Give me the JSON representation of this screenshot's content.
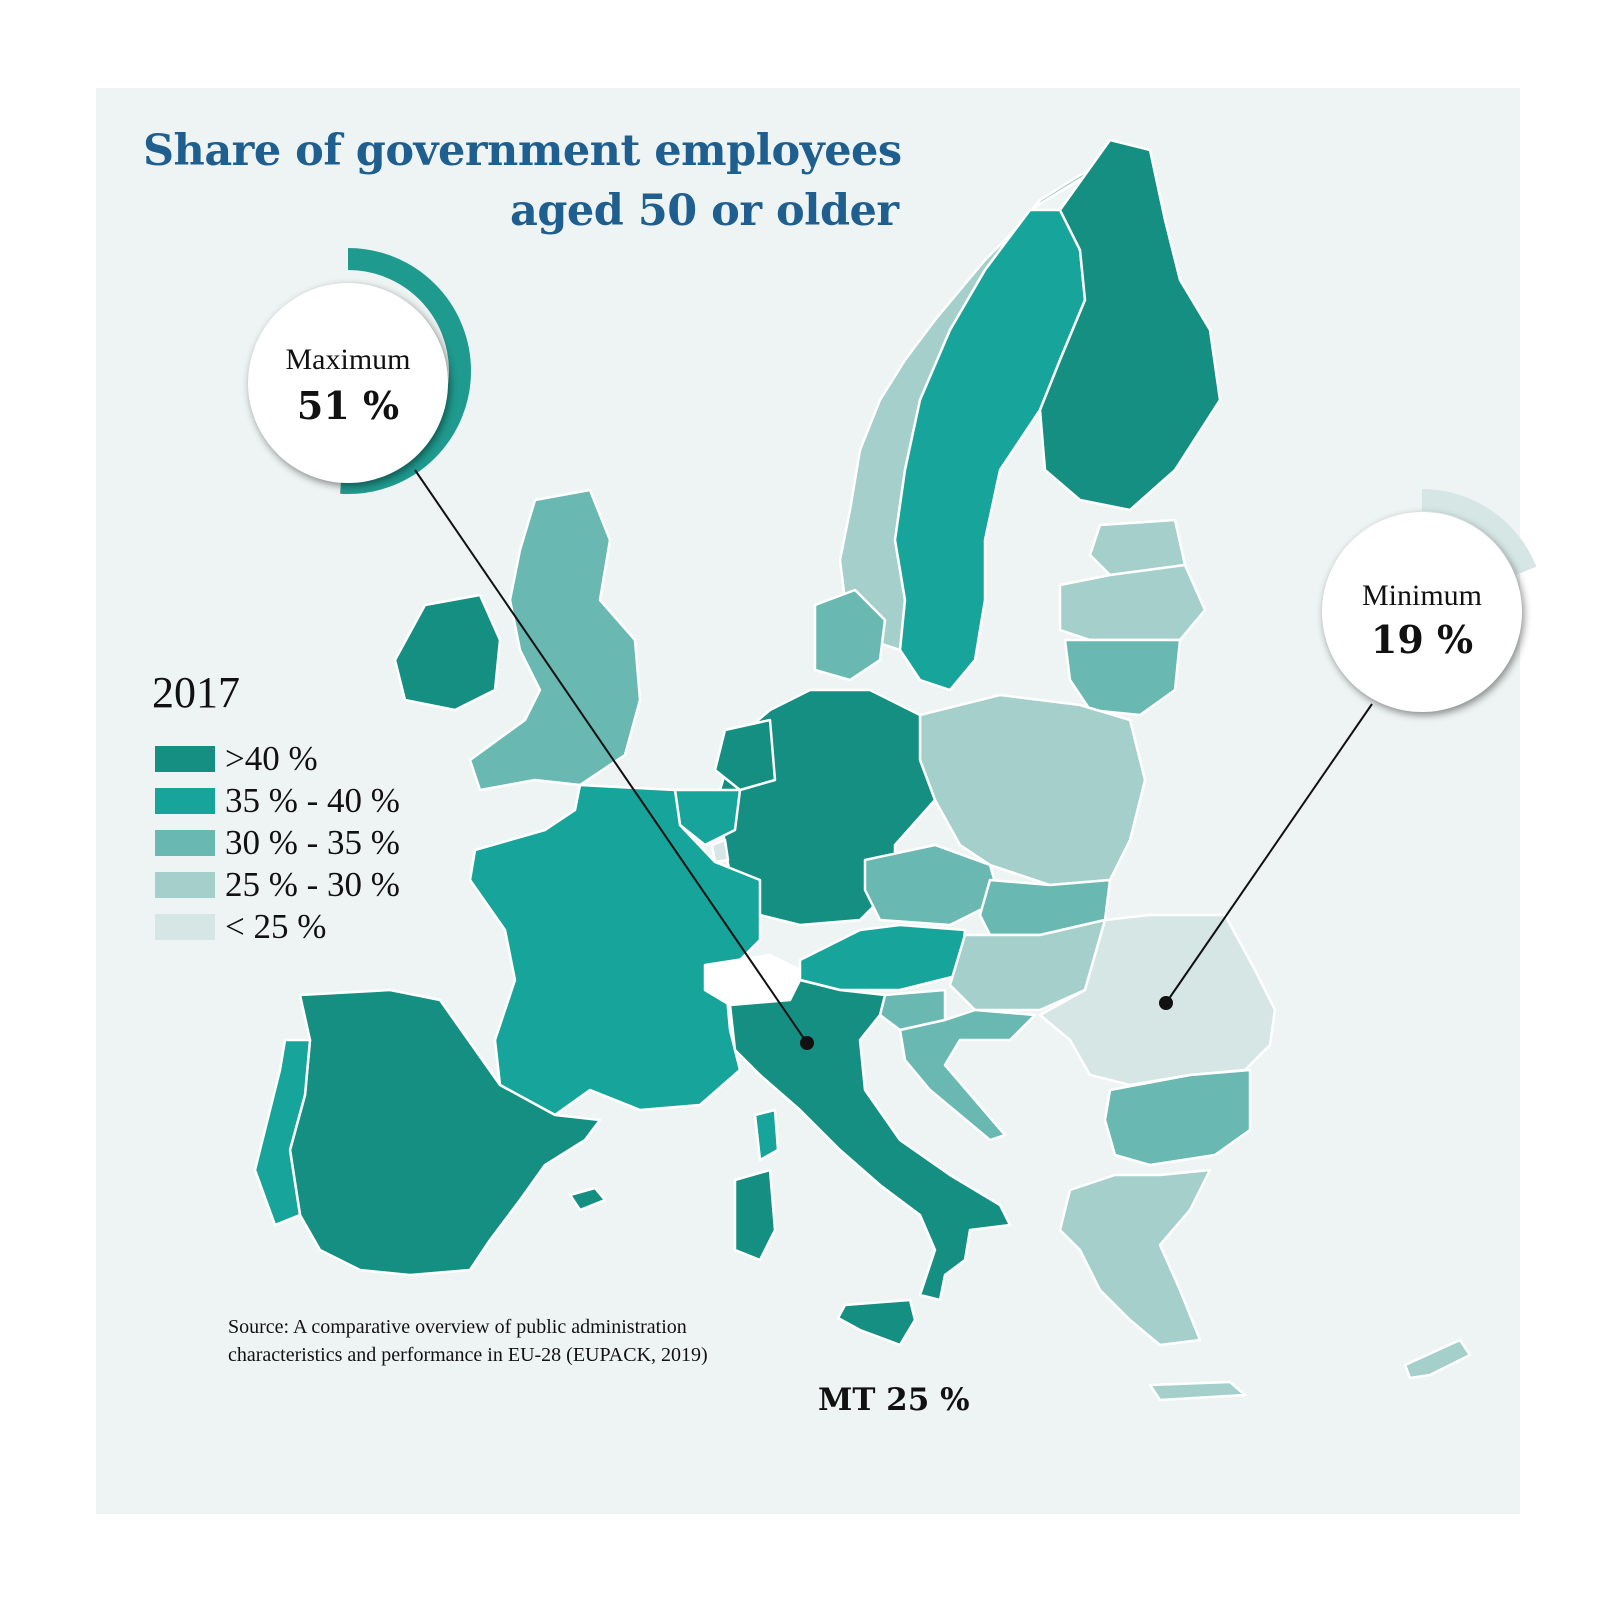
{
  "title_line1": "Share of government employees",
  "title_line2": "aged 50 or older",
  "legend": {
    "year": "2017",
    "items": [
      {
        "label": ">40 %",
        "color": "#168f83"
      },
      {
        "label": "35 % - 40 %",
        "color": "#17a49a"
      },
      {
        "label": "30 % - 35 %",
        "color": "#69b8b1"
      },
      {
        "label": "25 % - 30 %",
        "color": "#a4cfca"
      },
      {
        "label": "< 25 %",
        "color": "#d5e6e4"
      }
    ]
  },
  "callouts": {
    "maximum": {
      "label": "Maximum",
      "value": "51 %",
      "fraction": 0.51,
      "color": "#1f9a8e"
    },
    "minimum": {
      "label": "Minimum",
      "value": "19 %",
      "fraction": 0.19,
      "color": "#d5e6e4"
    }
  },
  "source_line1": "Source: A comparative overview of public administration",
  "source_line2": "characteristics and performance in EU-28 (EUPACK, 2019)",
  "mt_label": "MT 25 %"
}
